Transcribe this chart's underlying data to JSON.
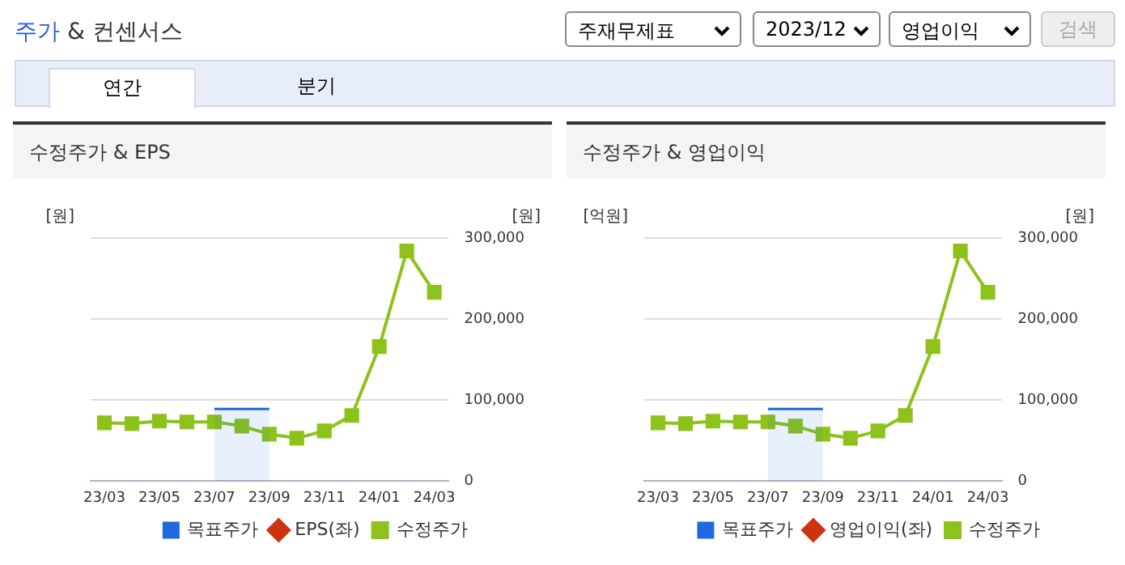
{
  "chart_data": [
    {
      "type": "other",
      "title": "주가 & 컨센서스",
      "annotations": [
        "주재무제표",
        "2023/12",
        "영업이익",
        "검색",
        "연간",
        "분기"
      ]
    },
    {
      "type": "line",
      "title": "수정주가 & EPS",
      "ylabel": "[원]",
      "y2label": "[원]",
      "categories": [
        "23/03",
        null,
        "23/05",
        null,
        "23/07",
        null,
        "23/09",
        null,
        "23/11",
        null,
        "24/01",
        null,
        "24/03"
      ],
      "series": [
        {
          "name": "목표주가",
          "type": "area",
          "color": "#1f6adf",
          "axis": "y2",
          "values": [
            null,
            null,
            null,
            null,
            89000,
            89000,
            89000,
            null,
            null,
            null,
            null,
            null,
            null
          ]
        },
        {
          "name": "EPS(좌)",
          "color": "#cc3311",
          "marker": "diamond",
          "values": [
            null,
            null,
            null,
            null,
            null,
            null,
            null,
            null,
            null,
            null,
            null,
            null,
            null
          ]
        },
        {
          "name": "수정주가",
          "color": "#8cc21a",
          "marker": "square",
          "axis": "y2",
          "values": [
            72000,
            71000,
            74000,
            73000,
            73000,
            68000,
            58000,
            53000,
            62000,
            81000,
            166000,
            284000,
            233000
          ]
        }
      ],
      "y2lim": [
        0,
        300000
      ],
      "y2ticks": [
        0,
        {
          "value": 100000,
          "label": "100,000"
        },
        {
          "value": 200000,
          "label": "200,000"
        },
        {
          "value": 300000,
          "label": "300,000"
        }
      ],
      "grid": "y",
      "legend": "bottom"
    },
    {
      "type": "line",
      "title": "수정주가 & 영업이익",
      "ylabel": "[억원]",
      "y2label": "[원]",
      "categories": [
        "23/03",
        null,
        "23/05",
        null,
        "23/07",
        null,
        "23/09",
        null,
        "23/11",
        null,
        "24/01",
        null,
        "24/03"
      ],
      "series": [
        {
          "name": "목표주가",
          "type": "area",
          "color": "#1f6adf",
          "axis": "y2",
          "values": [
            null,
            null,
            null,
            null,
            89000,
            89000,
            89000,
            null,
            null,
            null,
            null,
            null,
            null
          ]
        },
        {
          "name": "영업이익(좌)",
          "color": "#cc3311",
          "marker": "diamond",
          "values": [
            null,
            null,
            null,
            null,
            null,
            null,
            null,
            null,
            null,
            null,
            null,
            null,
            null
          ]
        },
        {
          "name": "수정주가",
          "color": "#8cc21a",
          "marker": "square",
          "axis": "y2",
          "values": [
            72000,
            71000,
            74000,
            73000,
            73000,
            68000,
            58000,
            53000,
            62000,
            81000,
            166000,
            284000,
            233000
          ]
        }
      ],
      "y2lim": [
        0,
        300000
      ],
      "y2ticks": [
        0,
        {
          "value": 100000,
          "label": "100,000"
        },
        {
          "value": 200000,
          "label": "200,000"
        },
        {
          "value": 300000,
          "label": "300,000"
        }
      ],
      "grid": "y",
      "legend": "bottom"
    }
  ]
}
